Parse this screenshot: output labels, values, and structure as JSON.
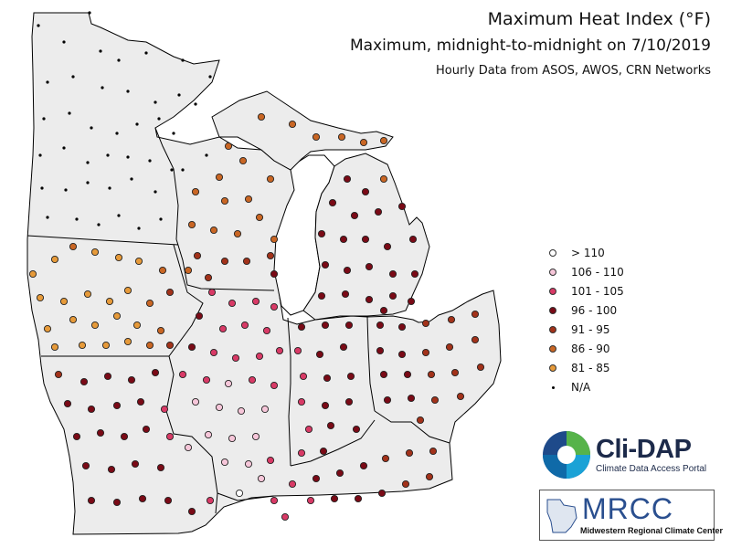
{
  "titles": {
    "main": "Maximum Heat Index (°F)",
    "sub": "Maximum, midnight-to-midnight on 7/10/2019",
    "source": "Hourly Data from ASOS, AWOS, CRN Networks"
  },
  "legend": [
    {
      "label": "> 110",
      "color": "#ffffff",
      "category": "gt110"
    },
    {
      "label": "106 - 110",
      "color": "#f6c6d9",
      "category": "106-110"
    },
    {
      "label": "101 - 105",
      "color": "#d83a66",
      "category": "101-105"
    },
    {
      "label": "96 - 100",
      "color": "#7a0a16",
      "category": "96-100"
    },
    {
      "label": "91 - 95",
      "color": "#a2321a",
      "category": "91-95"
    },
    {
      "label": "86 - 90",
      "color": "#c96624",
      "category": "86-90"
    },
    {
      "label": "81 - 85",
      "color": "#e69a3a",
      "category": "81-85"
    },
    {
      "label": "N/A",
      "color": "#000000",
      "category": "na"
    }
  ],
  "map": {
    "region": "Midwest",
    "land_color": "#ececec",
    "border_color": "#000000"
  },
  "logos": {
    "clidap": {
      "name": "Cli-DAP",
      "tagline": "Climate Data Access Portal"
    },
    "mrcc": {
      "name": "MRCC",
      "tagline": "Midwestern Regional Climate Center"
    }
  }
}
